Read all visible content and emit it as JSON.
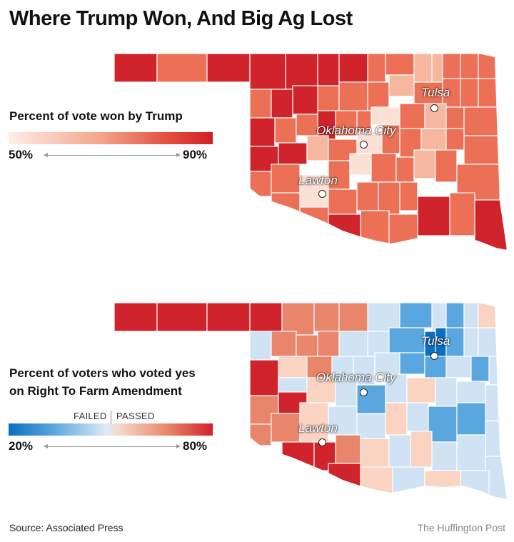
{
  "title": "Where Trump Won, And Big Ag Lost",
  "map1": {
    "legend_title": "Percent of vote won by Trump",
    "min_label": "50%",
    "max_label": "90%",
    "scale": {
      "min": 50,
      "max": 90
    },
    "colors": {
      "low": "#fbe0d5",
      "mid": "#ec7056",
      "high": "#d0232b"
    },
    "cities": [
      {
        "name": "Tulsa"
      },
      {
        "name": "Oklahoma City"
      },
      {
        "name": "Lawton"
      }
    ]
  },
  "map2": {
    "legend_title_line1": "Percent of voters who voted yes",
    "legend_title_line2": "on Right To Farm Amendment",
    "failed_label": "FAILED",
    "passed_label": "PASSED",
    "min_label": "20%",
    "max_label": "80%",
    "scale": {
      "min": 20,
      "max": 80
    },
    "colors": {
      "deep_blue": "#0b6fc1",
      "blue": "#5aa6df",
      "light_blue": "#cfe3f4",
      "light_red": "#fbd3c2",
      "red": "#e9856a",
      "deep_red": "#d0232b"
    },
    "cities": [
      {
        "name": "Tulsa"
      },
      {
        "name": "Oklahoma City"
      },
      {
        "name": "Lawton"
      }
    ]
  },
  "source": "Source: Associated Press",
  "credit": "The Huffington Post"
}
